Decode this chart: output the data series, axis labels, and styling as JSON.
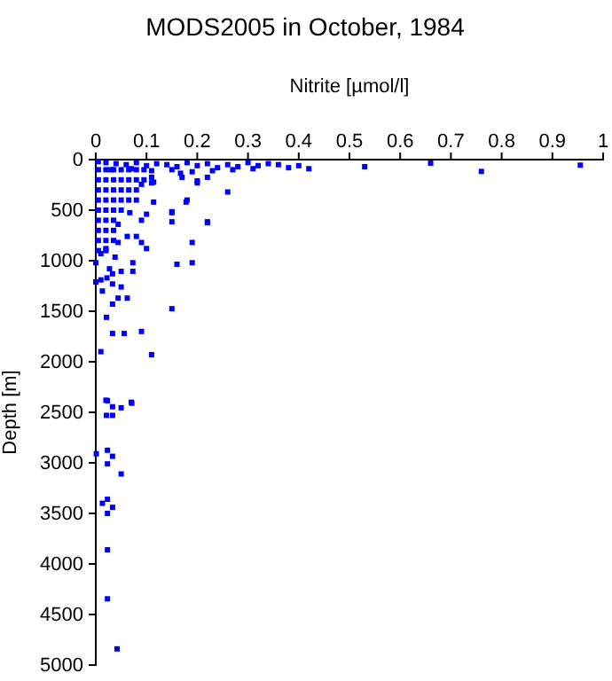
{
  "chart_data": {
    "type": "scatter",
    "title": "MODS2005 in October, 1984",
    "xlabel": "Nitrite [µmol/l]",
    "ylabel": "Depth [m]",
    "marker": "square",
    "grid": false,
    "xlim": [
      0,
      1
    ],
    "xticks": [
      0,
      0.1,
      0.2,
      0.3,
      0.4,
      0.5,
      0.6,
      0.7,
      0.8,
      0.9,
      1
    ],
    "ylim": [
      5000,
      0
    ],
    "yticks": [
      0,
      500,
      1000,
      1500,
      2000,
      2500,
      3000,
      3500,
      4000,
      4500,
      5000
    ],
    "series": [
      {
        "color": "#0000ff",
        "x": [
          0.53,
          0.66,
          0.76,
          0.955,
          0.42,
          0.38,
          0.4,
          0.36,
          0.34,
          0.32,
          0.3,
          0.28,
          0.26,
          0.24,
          0.22,
          0.2,
          0.18,
          0.16,
          0.14,
          0.12,
          0.1,
          0.08,
          0.06,
          0.04,
          0.02,
          0.005,
          0.31,
          0.27,
          0.23,
          0.19,
          0.15,
          0.11,
          0.07,
          0.03,
          0.26,
          0.178,
          0.22,
          0.19,
          0.15,
          0.15,
          0.1,
          0.114,
          0.114,
          0.2,
          0.167,
          0.22,
          0.19,
          0.16,
          0.15,
          0.11,
          0.09,
          0.07,
          0.02,
          0.01,
          0.056,
          0.033,
          0.021,
          0.033,
          0.044,
          0.062,
          0.05,
          0.073,
          0.05,
          0.033,
          0.038,
          0.073,
          0.08,
          0.09,
          0.1,
          0.062,
          0.013,
          0,
          0.01,
          0.022,
          0.033,
          0.027,
          0,
          0.01,
          0.02,
          0.09,
          0.15,
          0.18,
          0.2,
          0.22,
          0.17,
          0.11,
          0.11,
          0.09,
          0.08,
          0.067,
          0.044,
          0.044,
          0.005,
          0.02,
          0.035,
          0.05,
          0.065,
          0.08,
          0.095,
          0.005,
          0.02,
          0.035,
          0.05,
          0.065,
          0.08,
          0.095,
          0.005,
          0.02,
          0.035,
          0.05,
          0.065,
          0.08,
          0.005,
          0.02,
          0.035,
          0.05,
          0.065,
          0.005,
          0.02,
          0.035,
          0.05,
          0.005,
          0.02,
          0.035,
          0.005,
          0.02,
          0.035,
          0.005,
          0.02,
          0.035,
          0.005,
          0.02,
          0.023,
          0.071,
          0.05,
          0.033,
          0.021,
          0.033,
          0.001,
          0.023,
          0.033,
          0.023,
          0.05,
          0.023,
          0.013,
          0.033,
          0.023,
          0.023,
          0.023,
          0.042
        ],
        "values": [
          70,
          35,
          117,
          55,
          90,
          80,
          60,
          50,
          40,
          60,
          30,
          70,
          50,
          80,
          40,
          60,
          30,
          70,
          50,
          40,
          60,
          30,
          50,
          40,
          30,
          20,
          90,
          100,
          110,
          120,
          100,
          110,
          90,
          100,
          320,
          420,
          615,
          820,
          525,
          615,
          540,
          420,
          223,
          210,
          135,
          625,
          1020,
          1035,
          1475,
          1930,
          1700,
          2400,
          2380,
          1900,
          1720,
          1720,
          1560,
          1430,
          1370,
          1370,
          1260,
          1105,
          1105,
          1130,
          965,
          1020,
          760,
          820,
          880,
          760,
          1300,
          1210,
          1190,
          1170,
          1230,
          1080,
          1020,
          930,
          880,
          600,
          515,
          400,
          230,
          175,
          175,
          175,
          230,
          245,
          400,
          525,
          640,
          820,
          100,
          100,
          100,
          100,
          100,
          100,
          100,
          200,
          200,
          200,
          200,
          200,
          200,
          200,
          300,
          300,
          300,
          300,
          300,
          300,
          400,
          400,
          400,
          400,
          400,
          500,
          500,
          500,
          500,
          600,
          600,
          600,
          700,
          700,
          700,
          800,
          800,
          800,
          900,
          900,
          2385,
          2410,
          2455,
          2445,
          2530,
          2530,
          2910,
          2875,
          2935,
          3010,
          3110,
          3360,
          3400,
          3440,
          3500,
          3860,
          4345,
          4840
        ]
      }
    ]
  }
}
